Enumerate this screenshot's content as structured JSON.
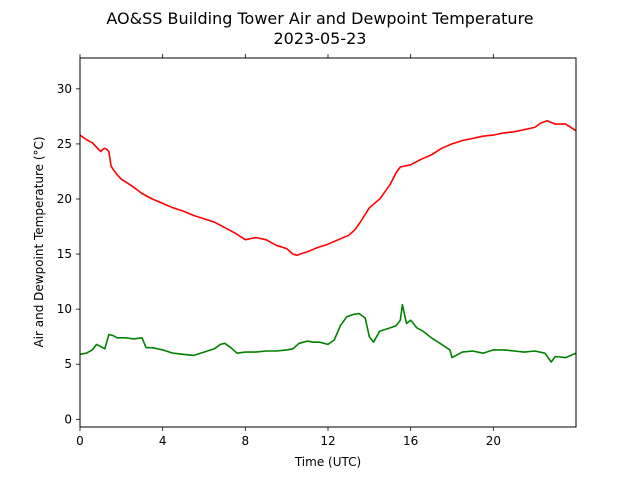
{
  "chart_data": {
    "type": "line",
    "title": "AO&SS Building Tower Air and Dewpoint Temperature",
    "subtitle": "2023-05-23",
    "xlabel": "Time (UTC)",
    "ylabel": "Air and Dewpoint Temperature (°C)",
    "xlim": [
      0,
      24
    ],
    "ylim": [
      -0.7,
      32.8
    ],
    "xticks": [
      0,
      4,
      8,
      12,
      16,
      20
    ],
    "yticks": [
      0,
      5,
      10,
      15,
      20,
      25,
      30
    ],
    "grid": false,
    "legend": "none",
    "series": [
      {
        "color": "#ff0000",
        "x": [
          0,
          0.3,
          0.6,
          0.8,
          1.0,
          1.1,
          1.2,
          1.3,
          1.4,
          1.5,
          1.6,
          1.8,
          2.0,
          2.5,
          3.0,
          3.5,
          4.0,
          4.5,
          5.0,
          5.5,
          6.0,
          6.5,
          7.0,
          7.5,
          8.0,
          8.5,
          9.0,
          9.5,
          10.0,
          10.3,
          10.5,
          10.8,
          11.0,
          11.5,
          12.0,
          12.5,
          13.0,
          13.3,
          13.6,
          14.0,
          14.5,
          15.0,
          15.3,
          15.5,
          16.0,
          16.5,
          17.0,
          17.5,
          18.0,
          18.5,
          19.0,
          19.5,
          20.0,
          20.5,
          21.0,
          21.5,
          22.0,
          22.3,
          22.6,
          23.0,
          23.5,
          24.0
        ],
        "y": [
          25.8,
          25.4,
          25.1,
          24.7,
          24.3,
          24.5,
          24.6,
          24.5,
          24.3,
          23.0,
          22.7,
          22.2,
          21.8,
          21.2,
          20.5,
          20.0,
          19.6,
          19.2,
          18.9,
          18.5,
          18.2,
          17.9,
          17.4,
          16.9,
          16.3,
          16.5,
          16.3,
          15.8,
          15.5,
          15.0,
          14.9,
          15.1,
          15.2,
          15.6,
          15.9,
          16.3,
          16.7,
          17.2,
          18.0,
          19.2,
          20.0,
          21.3,
          22.4,
          22.9,
          23.1,
          23.6,
          24.0,
          24.6,
          25.0,
          25.3,
          25.5,
          25.7,
          25.8,
          26.0,
          26.1,
          26.3,
          26.5,
          26.9,
          27.1,
          26.8,
          26.8,
          26.2
        ]
      },
      {
        "color": "#008000",
        "x": [
          0,
          0.3,
          0.6,
          0.8,
          1.0,
          1.2,
          1.4,
          1.6,
          1.8,
          2.2,
          2.6,
          3.0,
          3.2,
          3.5,
          4.0,
          4.5,
          5.0,
          5.5,
          6.0,
          6.5,
          6.8,
          7.0,
          7.3,
          7.6,
          8.0,
          8.5,
          9.0,
          9.5,
          10.0,
          10.3,
          10.6,
          11.0,
          11.3,
          11.6,
          12.0,
          12.3,
          12.6,
          12.9,
          13.2,
          13.5,
          13.8,
          14.0,
          14.2,
          14.5,
          15.0,
          15.3,
          15.5,
          15.6,
          15.8,
          16.0,
          16.3,
          16.6,
          17.0,
          17.5,
          17.9,
          18.0,
          18.5,
          19.0,
          19.5,
          20.0,
          20.5,
          21.0,
          21.5,
          22.0,
          22.5,
          22.8,
          23.0,
          23.5,
          24.0
        ],
        "y": [
          5.9,
          6.0,
          6.3,
          6.8,
          6.6,
          6.4,
          7.7,
          7.6,
          7.4,
          7.4,
          7.3,
          7.4,
          6.5,
          6.5,
          6.3,
          6.0,
          5.9,
          5.8,
          6.1,
          6.4,
          6.8,
          6.9,
          6.5,
          6.0,
          6.1,
          6.1,
          6.2,
          6.2,
          6.3,
          6.4,
          6.9,
          7.1,
          7.0,
          7.0,
          6.8,
          7.2,
          8.5,
          9.3,
          9.5,
          9.6,
          9.2,
          7.5,
          7.0,
          8.0,
          8.3,
          8.5,
          9.0,
          10.4,
          8.7,
          9.0,
          8.3,
          8.0,
          7.4,
          6.8,
          6.3,
          5.6,
          6.1,
          6.2,
          6.0,
          6.3,
          6.3,
          6.2,
          6.1,
          6.2,
          6.0,
          5.2,
          5.7,
          5.6,
          6.0
        ]
      }
    ]
  }
}
